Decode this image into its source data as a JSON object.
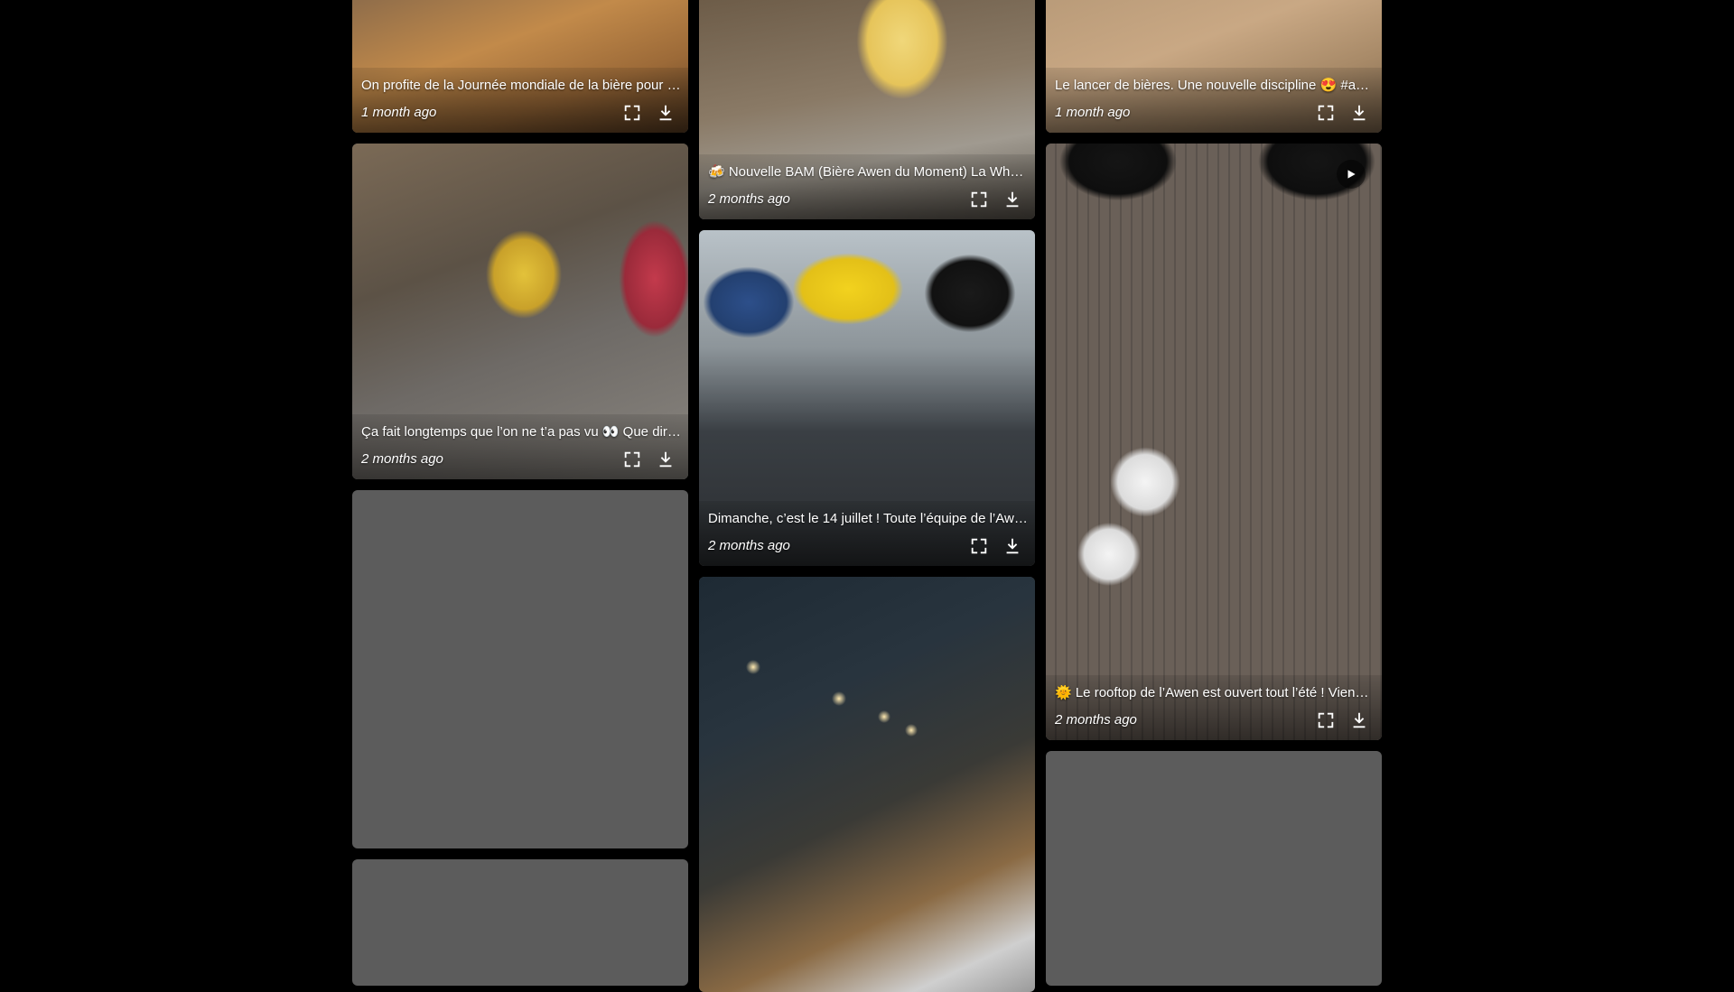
{
  "feed": {
    "columns": [
      {
        "cards": [
          {
            "caption": "On profite de la Journée mondiale de la bière pour t...",
            "time": "1 month ago",
            "expand_icon": "fullscreen-icon",
            "download_icon": "download-icon",
            "video": false
          },
          {
            "caption": "Ça fait longtemps que l’on ne t’a pas vu 👀 Que dirai...",
            "time": "2 months ago",
            "expand_icon": "fullscreen-icon",
            "download_icon": "download-icon",
            "video": false
          },
          {
            "placeholder": true
          },
          {
            "placeholder": true
          }
        ]
      },
      {
        "cards": [
          {
            "caption": "🍻 Nouvelle BAM (Bière Awen du Moment) La Whe...",
            "time": "2 months ago",
            "expand_icon": "fullscreen-icon",
            "download_icon": "download-icon",
            "video": false
          },
          {
            "caption": "Dimanche, c’est le 14 juillet ! Toute l’équipe de l’Awe...",
            "time": "2 months ago",
            "expand_icon": "fullscreen-icon",
            "download_icon": "download-icon",
            "video": false
          },
          {
            "caption": "",
            "time": "",
            "video": false
          }
        ]
      },
      {
        "cards": [
          {
            "caption": "Le lancer de bières. Une nouvelle discipline 😍 #aw...",
            "time": "1 month ago",
            "expand_icon": "fullscreen-icon",
            "download_icon": "download-icon",
            "video": false
          },
          {
            "caption": "🌞 Le rooftop de l’Awen est ouvert tout l’été ! Viens ...",
            "time": "2 months ago",
            "expand_icon": "fullscreen-icon",
            "download_icon": "download-icon",
            "video": true,
            "play_icon": "play-icon"
          },
          {
            "placeholder": true
          }
        ]
      }
    ]
  },
  "colors": {
    "background": "#000000",
    "placeholder": "#5c5c5c",
    "text": "#ffffff"
  }
}
